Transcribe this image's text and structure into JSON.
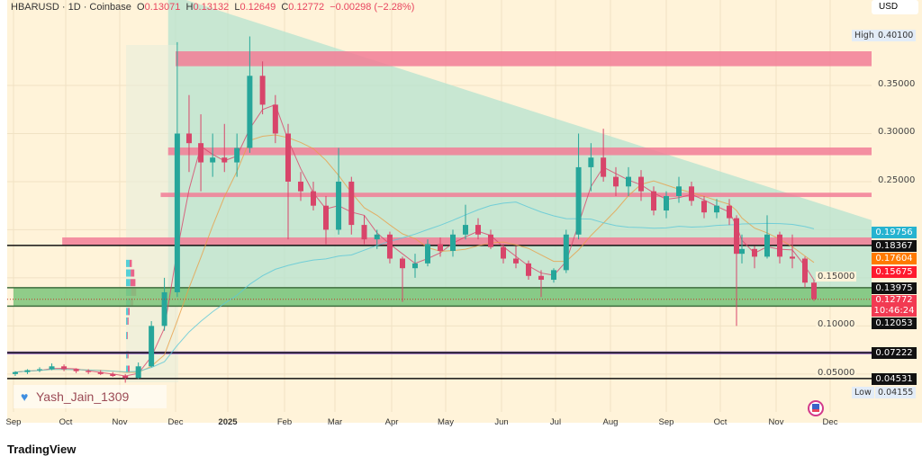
{
  "header": {
    "symbol": "HBARUSD",
    "interval": "1D",
    "exchange": "Coinbase",
    "open_label": "O",
    "open": "0.13071",
    "high_label": "H",
    "high": "0.13132",
    "low_label": "L",
    "low": "0.12649",
    "close_label": "C",
    "close": "0.12772",
    "change": "−0.00298 (−2.28%)"
  },
  "currency": "USD",
  "watermark": "Yash_Jain_1309",
  "watermark_icon": "heart-icon",
  "logo_text": "TradingView",
  "colors": {
    "up": "#26a69a",
    "down": "#d8456a",
    "background": "#fff3d9",
    "zone_pink": "#f27d96",
    "zone_green": "#7cc47a",
    "triangle": "#b5e3cf",
    "purple": "#8e5ec6"
  },
  "chart_data": {
    "type": "candlestick",
    "interval_drawn": "weekly approximation",
    "x_ticks": [
      [
        "Sep",
        "2024-09-01"
      ],
      [
        "Oct",
        "2024-10-01"
      ],
      [
        "Nov",
        "2024-11-01"
      ],
      [
        "Dec",
        "2024-12-01"
      ],
      [
        "2025",
        "2025-01-01"
      ],
      [
        "Feb",
        "2025-02-01"
      ],
      [
        "Mar",
        "2025-03-01"
      ],
      [
        "Apr",
        "2025-04-01"
      ],
      [
        "May",
        "2025-05-01"
      ],
      [
        "Jun",
        "2025-06-01"
      ],
      [
        "Jul",
        "2025-07-01"
      ],
      [
        "Aug",
        "2025-08-01"
      ],
      [
        "Sep",
        "2025-09-01"
      ],
      [
        "Oct",
        "2025-10-01"
      ],
      [
        "Nov",
        "2025-11-01"
      ],
      [
        "Dec",
        "2025-12-01"
      ]
    ],
    "y_ticks": [
      "0.35000",
      "0.30000",
      "0.25000",
      "0.15000",
      "0.10000",
      "0.05000"
    ],
    "ylim": [
      0.035,
      0.43
    ],
    "grid": true,
    "ohlc": [
      [
        "2024-09-02",
        0.05,
        0.053,
        0.048,
        0.052
      ],
      [
        "2024-09-09",
        0.052,
        0.055,
        0.05,
        0.054
      ],
      [
        "2024-09-16",
        0.054,
        0.057,
        0.052,
        0.055
      ],
      [
        "2024-09-23",
        0.055,
        0.061,
        0.054,
        0.058
      ],
      [
        "2024-09-30",
        0.058,
        0.06,
        0.053,
        0.055
      ],
      [
        "2024-10-07",
        0.055,
        0.056,
        0.051,
        0.053
      ],
      [
        "2024-10-14",
        0.053,
        0.055,
        0.05,
        0.052
      ],
      [
        "2024-10-21",
        0.052,
        0.054,
        0.049,
        0.05
      ],
      [
        "2024-10-28",
        0.05,
        0.052,
        0.047,
        0.048
      ],
      [
        "2024-11-04",
        0.048,
        0.05,
        0.041,
        0.046
      ],
      [
        "2024-11-11",
        0.046,
        0.062,
        0.045,
        0.058
      ],
      [
        "2024-11-18",
        0.058,
        0.105,
        0.057,
        0.1
      ],
      [
        "2024-11-25",
        0.1,
        0.15,
        0.095,
        0.135
      ],
      [
        "2024-12-02",
        0.135,
        0.395,
        0.13,
        0.3
      ],
      [
        "2024-12-09",
        0.3,
        0.34,
        0.26,
        0.29
      ],
      [
        "2024-12-16",
        0.29,
        0.32,
        0.24,
        0.27
      ],
      [
        "2024-12-23",
        0.27,
        0.3,
        0.255,
        0.275
      ],
      [
        "2024-12-30",
        0.275,
        0.31,
        0.26,
        0.27
      ],
      [
        "2025-01-06",
        0.27,
        0.3,
        0.255,
        0.285
      ],
      [
        "2025-01-13",
        0.285,
        0.401,
        0.28,
        0.36
      ],
      [
        "2025-01-20",
        0.36,
        0.375,
        0.32,
        0.33
      ],
      [
        "2025-01-27",
        0.33,
        0.34,
        0.29,
        0.3
      ],
      [
        "2025-02-03",
        0.3,
        0.31,
        0.19,
        0.25
      ],
      [
        "2025-02-10",
        0.25,
        0.26,
        0.23,
        0.24
      ],
      [
        "2025-02-17",
        0.24,
        0.25,
        0.22,
        0.225
      ],
      [
        "2025-02-24",
        0.225,
        0.235,
        0.185,
        0.2
      ],
      [
        "2025-03-03",
        0.2,
        0.285,
        0.195,
        0.25
      ],
      [
        "2025-03-10",
        0.25,
        0.255,
        0.195,
        0.205
      ],
      [
        "2025-03-17",
        0.205,
        0.215,
        0.185,
        0.19
      ],
      [
        "2025-03-24",
        0.19,
        0.2,
        0.18,
        0.195
      ],
      [
        "2025-03-31",
        0.195,
        0.198,
        0.165,
        0.17
      ],
      [
        "2025-04-07",
        0.17,
        0.172,
        0.125,
        0.16
      ],
      [
        "2025-04-14",
        0.16,
        0.175,
        0.15,
        0.165
      ],
      [
        "2025-04-21",
        0.165,
        0.19,
        0.162,
        0.185
      ],
      [
        "2025-04-28",
        0.185,
        0.192,
        0.172,
        0.178
      ],
      [
        "2025-05-05",
        0.178,
        0.2,
        0.172,
        0.195
      ],
      [
        "2025-05-12",
        0.195,
        0.226,
        0.19,
        0.205
      ],
      [
        "2025-05-19",
        0.205,
        0.212,
        0.19,
        0.195
      ],
      [
        "2025-05-26",
        0.195,
        0.2,
        0.18,
        0.182
      ],
      [
        "2025-06-02",
        0.182,
        0.185,
        0.165,
        0.17
      ],
      [
        "2025-06-09",
        0.17,
        0.183,
        0.16,
        0.165
      ],
      [
        "2025-06-16",
        0.165,
        0.168,
        0.148,
        0.152
      ],
      [
        "2025-06-23",
        0.152,
        0.158,
        0.13,
        0.148
      ],
      [
        "2025-06-30",
        0.148,
        0.16,
        0.145,
        0.158
      ],
      [
        "2025-07-07",
        0.158,
        0.2,
        0.155,
        0.195
      ],
      [
        "2025-07-14",
        0.195,
        0.3,
        0.19,
        0.265
      ],
      [
        "2025-07-21",
        0.265,
        0.29,
        0.24,
        0.275
      ],
      [
        "2025-07-28",
        0.275,
        0.305,
        0.25,
        0.255
      ],
      [
        "2025-08-04",
        0.255,
        0.265,
        0.235,
        0.245
      ],
      [
        "2025-08-11",
        0.245,
        0.265,
        0.235,
        0.255
      ],
      [
        "2025-08-18",
        0.255,
        0.262,
        0.23,
        0.24
      ],
      [
        "2025-08-25",
        0.24,
        0.245,
        0.215,
        0.22
      ],
      [
        "2025-09-01",
        0.22,
        0.24,
        0.212,
        0.235
      ],
      [
        "2025-09-08",
        0.235,
        0.255,
        0.228,
        0.245
      ],
      [
        "2025-09-15",
        0.245,
        0.25,
        0.225,
        0.23
      ],
      [
        "2025-09-22",
        0.23,
        0.235,
        0.212,
        0.218
      ],
      [
        "2025-09-29",
        0.218,
        0.232,
        0.212,
        0.225
      ],
      [
        "2025-10-06",
        0.225,
        0.232,
        0.205,
        0.212
      ],
      [
        "2025-10-10",
        0.212,
        0.215,
        0.1,
        0.175
      ],
      [
        "2025-10-13",
        0.175,
        0.195,
        0.165,
        0.18
      ],
      [
        "2025-10-20",
        0.18,
        0.183,
        0.16,
        0.172
      ],
      [
        "2025-10-27",
        0.172,
        0.215,
        0.17,
        0.195
      ],
      [
        "2025-11-03",
        0.195,
        0.198,
        0.165,
        0.172
      ],
      [
        "2025-11-10",
        0.172,
        0.195,
        0.16,
        0.17
      ],
      [
        "2025-11-17",
        0.17,
        0.172,
        0.14,
        0.145
      ],
      [
        "2025-11-22",
        0.145,
        0.148,
        0.126,
        0.128
      ]
    ],
    "zones": [
      {
        "kind": "resistance",
        "from": "2024-12-01",
        "top": 0.3855,
        "bottom": 0.37
      },
      {
        "kind": "resistance",
        "from": "2024-11-27",
        "top": 0.2855,
        "bottom": 0.2775
      },
      {
        "kind": "resistance",
        "from": "2024-11-23",
        "top": 0.2385,
        "bottom": 0.234
      },
      {
        "kind": "resistance",
        "from": "2024-09-29",
        "top": 0.192,
        "bottom": 0.1837
      },
      {
        "kind": "support",
        "from": "2024-09-01",
        "top": 0.1398,
        "bottom": 0.1205
      }
    ],
    "lines": [
      0.18367,
      0.13975,
      0.12053,
      0.07222,
      0.04531
    ],
    "purple_band": [
      0.0735,
      0.0705
    ],
    "triangle": {
      "start": "2024-11-27",
      "top_start": 0.43,
      "top_end": 0.21,
      "end": "2025-12-25",
      "bottom": 0.1205
    },
    "price_labels": [
      {
        "value": "0.19756",
        "color": "#26b3d0"
      },
      {
        "value": "0.18367",
        "color": "#111111"
      },
      {
        "value": "0.17604",
        "color": "#ff7a00"
      },
      {
        "value": "0.15675",
        "color": "#ff1a2e"
      },
      {
        "value": "0.13975",
        "color": "#111111"
      },
      {
        "value": "0.12772",
        "color": "#f23a52",
        "countdown": "10:46:24"
      },
      {
        "value": "0.12053",
        "color": "#111111"
      },
      {
        "value": "0.07222",
        "color": "#111111"
      },
      {
        "value": "0.04531",
        "color": "#111111"
      }
    ],
    "high": {
      "label": "High",
      "value": "0.40100"
    },
    "low": {
      "label": "Low",
      "value": "0.04155"
    }
  }
}
